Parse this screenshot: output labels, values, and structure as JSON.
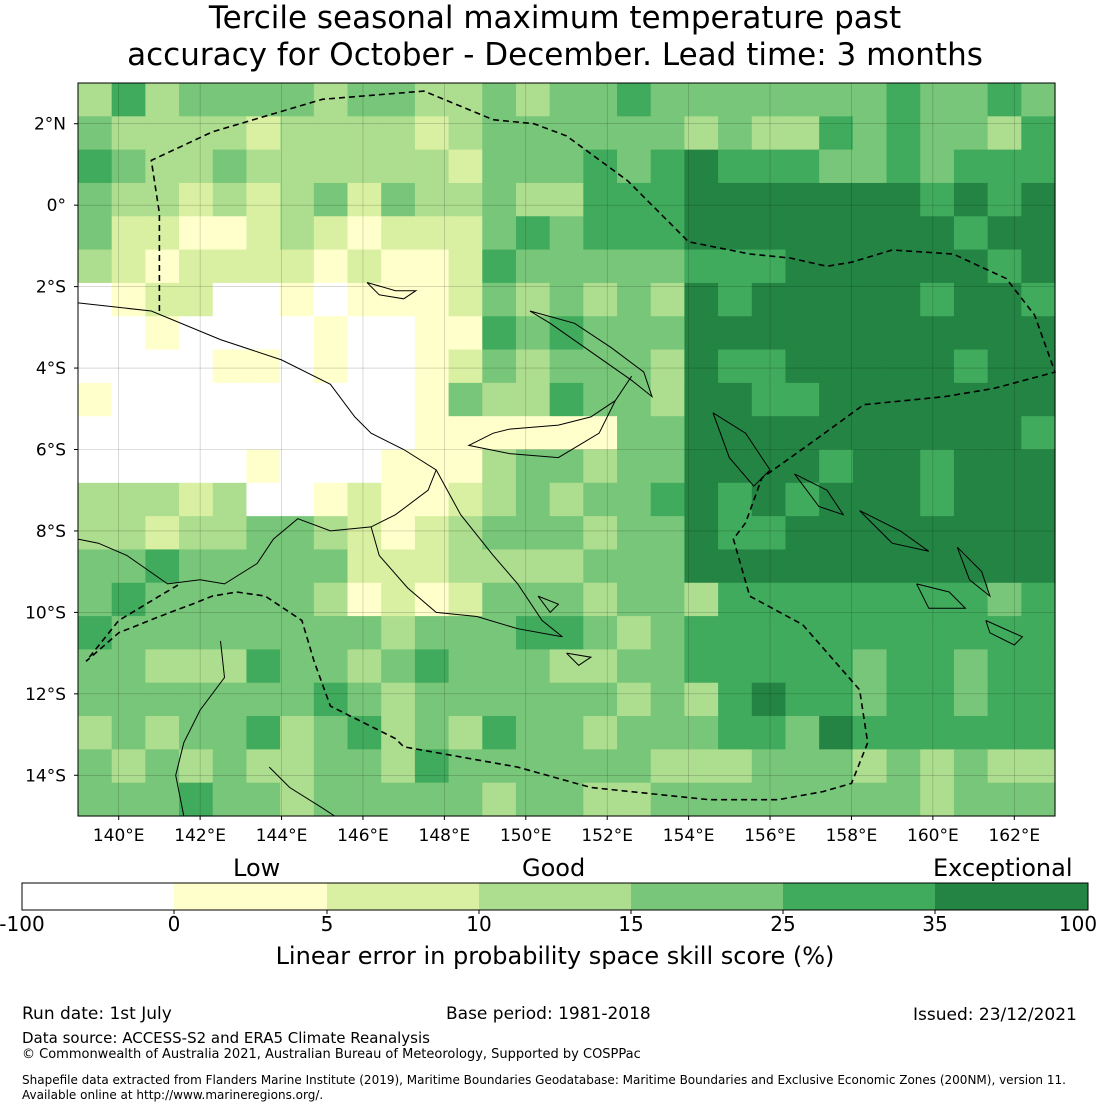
{
  "title": {
    "line1": "Tercile seasonal maximum temperature past",
    "line2": "accuracy for October - December. Lead time: 3 months"
  },
  "map": {
    "lon_range": [
      139,
      163
    ],
    "lat_range": [
      -15,
      3
    ],
    "lat_ticks": [
      "2°N",
      "0°",
      "2°S",
      "4°S",
      "6°S",
      "8°S",
      "10°S",
      "12°S",
      "14°S"
    ],
    "lon_ticks": [
      "140°E",
      "142°E",
      "144°E",
      "146°E",
      "148°E",
      "150°E",
      "152°E",
      "154°E",
      "156°E",
      "158°E",
      "160°E",
      "162°E"
    ],
    "grid_lines": true,
    "coastlines": true,
    "eez_boundary": "dashed"
  },
  "legend": {
    "categories": [
      "Low",
      "Good",
      "Exceptional"
    ],
    "ticks": [
      "-100",
      "0",
      "5",
      "10",
      "15",
      "25",
      "35",
      "100"
    ],
    "colors": [
      "#ffffff",
      "#ffffcc",
      "#d9f0a3",
      "#addd8e",
      "#78c679",
      "#41ab5d",
      "#238443"
    ],
    "label": "Linear error in probability space skill score (%)"
  },
  "footer": {
    "run_date": "Run date: 1st July",
    "base_period": "Base period: 1981-2018",
    "issued": "Issued: 23/12/2021",
    "data_source": "Data source: ACCESS-S2 and ERA5 Climate Reanalysis",
    "copyright": "© Commonwealth of Australia 2021, Australian Bureau of Meteorology, Supported by COSPPac",
    "shapefile_line1": "Shapefile data extracted from Flanders Marine Institute (2019), Maritime Boundaries Geodatabase: Maritime Boundaries and Exclusive Economic Zones (200NM), version 11.",
    "shapefile_line2": "Available online at http://www.marineregions.org/."
  }
}
